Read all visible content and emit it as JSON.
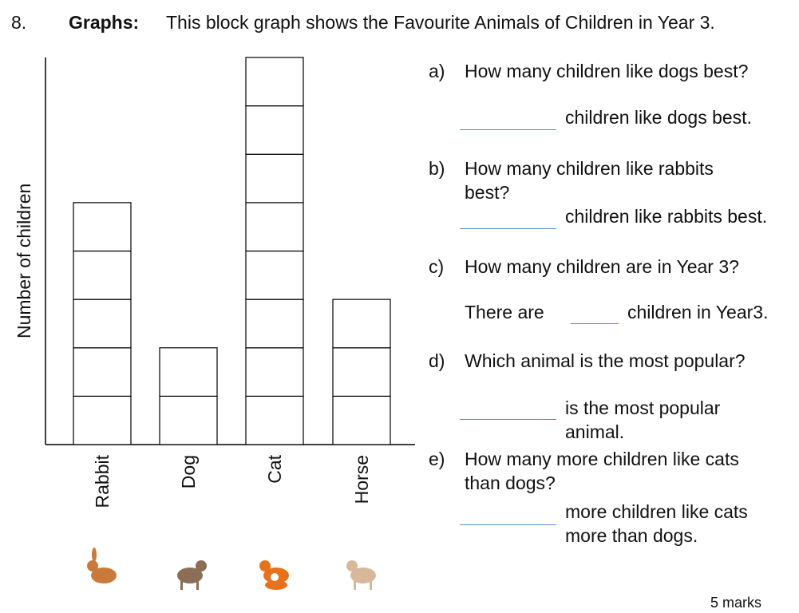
{
  "header": {
    "number": "8.",
    "label": "Graphs:",
    "text": "This block graph shows the Favourite Animals of Children in Year 3."
  },
  "chart_data": {
    "type": "bar",
    "style": "block graph",
    "categories": [
      "Rabbit",
      "Dog",
      "Cat",
      "Horse"
    ],
    "values": [
      5,
      2,
      8,
      3
    ],
    "ylabel": "Number of children",
    "xlabel": "",
    "ylim": [
      0,
      8
    ],
    "grid": false,
    "icons": [
      "rabbit-icon",
      "dog-icon",
      "cat-icon",
      "horse-icon"
    ]
  },
  "questions": [
    {
      "letter": "a)",
      "lines": [
        "How many children like dogs best?"
      ],
      "answer_text": [
        "children like dogs best."
      ]
    },
    {
      "letter": "b)",
      "lines": [
        "How many children like rabbits",
        "best?"
      ],
      "answer_text": [
        "children like rabbits best."
      ]
    },
    {
      "letter": "c)",
      "lines": [
        "How many children are in Year 3?"
      ],
      "answer_prefix": "There are",
      "answer_text": [
        "children in Year3."
      ]
    },
    {
      "letter": "d)",
      "lines": [
        "Which animal is the most popular?"
      ],
      "answer_text": [
        "is the most popular",
        "animal."
      ]
    },
    {
      "letter": "e)",
      "lines": [
        "How many more children like cats",
        "than dogs?"
      ],
      "answer_text": [
        "more children like cats",
        "more than dogs."
      ]
    }
  ],
  "marks": "5 marks",
  "colors": {
    "answer_line": "#5b8ec9",
    "grid": "#000000"
  }
}
